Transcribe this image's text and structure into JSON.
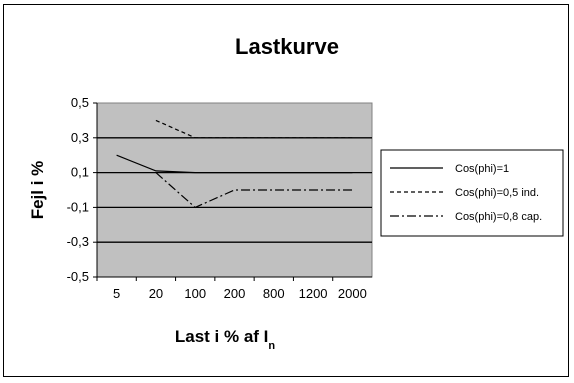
{
  "chart_data": {
    "type": "line",
    "title": "Lastkurve",
    "xlabel": "Last i % af I",
    "xlabel_subscript": "n",
    "ylabel": "Fejl i %",
    "categories": [
      "5",
      "20",
      "100",
      "200",
      "800",
      "1200",
      "2000"
    ],
    "yticks": [
      "0,5",
      "0,3",
      "0,1",
      "-0,1",
      "-0,3",
      "-0,5"
    ],
    "ylim": [
      -0.5,
      0.5
    ],
    "grid": true,
    "legend_position": "right",
    "series": [
      {
        "name": "Cos(phi)=1",
        "style": "solid",
        "values": [
          0.2,
          0.11,
          0.1,
          0.1,
          0.1,
          0.1,
          0.1
        ]
      },
      {
        "name": "Cos(phi)=0,5 ind.",
        "style": "dashed",
        "values": [
          null,
          0.4,
          0.3,
          0.3,
          0.3,
          0.3,
          0.3
        ]
      },
      {
        "name": "Cos(phi)=0,8 cap.",
        "style": "dashdot",
        "values": [
          null,
          0.1,
          -0.1,
          0.0,
          0.0,
          0.0,
          0.0
        ]
      }
    ]
  }
}
